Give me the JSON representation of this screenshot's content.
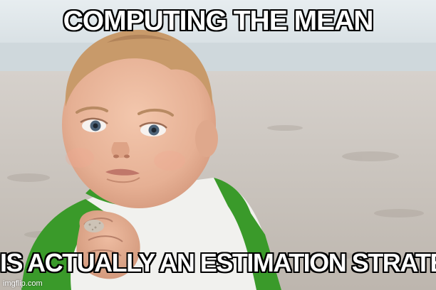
{
  "meme": {
    "top_text": "COMPUTING THE MEAN",
    "bottom_text": "IS ACTUALLY AN ESTIMATION STRATEGY",
    "watermark": "imgflip.com"
  },
  "image": {
    "subject": "toddler-clenched-fist-success-kid",
    "setting": "beach",
    "colors": {
      "sky": "#dfe6ea",
      "sea": "#c9d3d8",
      "sand": "#cfc9c3",
      "skin": "#e9b79c",
      "hair": "#c89a6a",
      "shirt_green": "#3a9a2a",
      "shirt_white": "#f1f1ee"
    }
  }
}
